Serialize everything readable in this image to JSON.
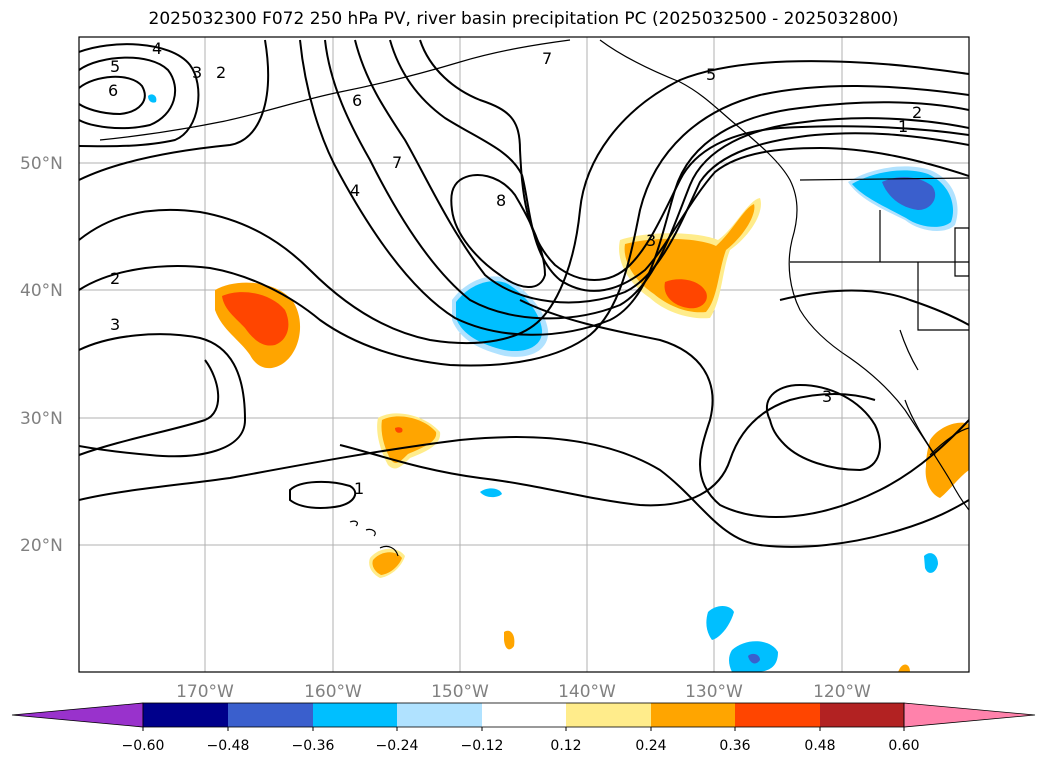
{
  "title": "2025032300 F072 250 hPa PV, river basin precipitation PC (2025032500 - 2025032800)",
  "map": {
    "lat_labels": [
      "50°N",
      "40°N",
      "30°N",
      "20°N"
    ],
    "lon_labels": [
      "170°W",
      "160°W",
      "150°W",
      "140°W",
      "130°W",
      "120°W"
    ],
    "contour_labels": [
      "5",
      "6",
      "4",
      "3",
      "2",
      "6",
      "7",
      "4",
      "8",
      "7",
      "5",
      "2",
      "1",
      "3",
      "1",
      "3",
      "2",
      "3"
    ]
  },
  "colorbar": {
    "ticks": [
      "−0.60",
      "−0.48",
      "−0.36",
      "−0.24",
      "−0.12",
      "0.12",
      "0.24",
      "0.36",
      "0.48",
      "0.60"
    ],
    "colors": [
      "#9932cc",
      "#00008b",
      "#3a5fcd",
      "#00bfff",
      "#b0e2ff",
      "#ffffff",
      "#ffec8b",
      "#ffa500",
      "#ff4500",
      "#b22222",
      "#ff82ab"
    ]
  }
}
